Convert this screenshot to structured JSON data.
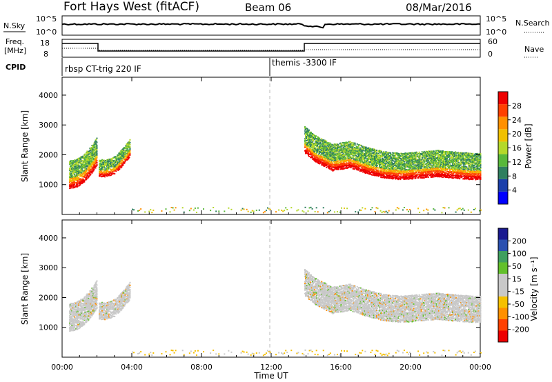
{
  "header": {
    "station": "Fort Hays West (fitACF)",
    "beam": "Beam 06",
    "date": "08/Mar/2016"
  },
  "sky_panel": {
    "label": "N.Sky",
    "ticks": [
      "10^5",
      "10^0"
    ],
    "right_label": "N.Search",
    "right_ticks": [
      "10^5",
      "10^0"
    ]
  },
  "freq_panel": {
    "label_line1": "Freq.",
    "label_line2": "[MHz]",
    "ticks": [
      "18",
      "8"
    ],
    "right_label": "Nave",
    "right_ticks": [
      "60",
      "0"
    ]
  },
  "cpid_panel": {
    "label": "CPID",
    "segments": [
      "rbsp CT-trig 220 IF",
      "themis -3300 IF"
    ]
  },
  "colors": {
    "power_scale": [
      "#0000ff",
      "#1a3faa",
      "#2f7f5f",
      "#58b83a",
      "#b4d82a",
      "#f0c000",
      "#ff9000",
      "#ff4000",
      "#ee0000"
    ],
    "velocity_scale": [
      "#ee0000",
      "#ff4000",
      "#ff9000",
      "#f5c000",
      "#c8c8c8",
      "#c8c8c8",
      "#62c02a",
      "#3f9f5f",
      "#2a50b0",
      "#1a1a90"
    ]
  },
  "chart_data": [
    {
      "type": "heatmap",
      "panel": "power",
      "ylabel": "Slant Range [km]",
      "ylim": [
        0,
        4600
      ],
      "yticks": [
        "1000",
        "2000",
        "3000",
        "4000"
      ],
      "xlim_hours": [
        0,
        24
      ],
      "colorbar_label": "Power [dB]",
      "colorbar_ticks": [
        "4",
        "8",
        "12",
        "16",
        "20",
        "24",
        "28"
      ],
      "colorbar_range": [
        0,
        32
      ],
      "series": [
        {
          "x": [
            0.4,
            0.8,
            1.2,
            1.6,
            2.0
          ],
          "y": [
            900,
            950,
            1100,
            1350,
            1700
          ]
        },
        {
          "x": [
            2.1,
            2.5,
            3.0,
            3.5,
            3.9
          ],
          "y": [
            1300,
            1300,
            1400,
            1700,
            2000
          ]
        },
        {
          "x": [
            13.9,
            14.5,
            15.5,
            16.5,
            17.5,
            18.5,
            19.5,
            20.5,
            21.5,
            22.5,
            23.5
          ],
          "y": [
            2100,
            1800,
            1500,
            1600,
            1400,
            1250,
            1200,
            1250,
            1300,
            1250,
            1200
          ]
        }
      ]
    },
    {
      "type": "heatmap",
      "panel": "velocity",
      "ylabel": "Slant Range [km]",
      "ylim": [
        0,
        4600
      ],
      "yticks": [
        "1000",
        "2000",
        "3000",
        "4000"
      ],
      "xlim_hours": [
        0,
        24
      ],
      "xticks": [
        "00:00",
        "04:00",
        "08:00",
        "12:00",
        "16:00",
        "20:00",
        "00:00"
      ],
      "xlabel": "Time UT",
      "colorbar_label": "Velocity [m s⁻¹]",
      "colorbar_ticks": [
        "-200",
        "-100",
        "-50",
        "-15",
        "15",
        "50",
        "100",
        "200"
      ]
    }
  ]
}
